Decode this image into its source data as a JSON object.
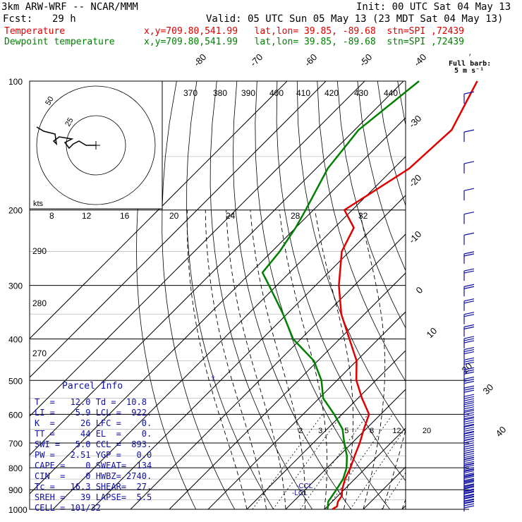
{
  "header": {
    "model": "3km ARW-WRF -- NCAR/MMM",
    "init": "Init: 00 UTC Sat 04 May 13",
    "fcst_label": "Fcst:",
    "fcst_value": "29 h",
    "valid": "Valid: 05 UTC Sun 05 May 13 (23 MDT Sat 04 May 13)",
    "temp_label": "Temperature",
    "temp_info": "x,y=709.80,541.99   lat,lon= 39.85, -89.68  stn=SPI ,72439",
    "dew_label": "Dewpoint temperature",
    "dew_info": "x,y=709.80,541.99   lat,lon= 39.85, -89.68  stn=SPI ,72439"
  },
  "wind_legend": {
    "line1": "Full barb:",
    "line2": "5 m s⁻¹"
  },
  "hodograph": {
    "units": "kts",
    "ring_labels": [
      "25",
      "50"
    ],
    "x_labels": [
      "8",
      "12",
      "16",
      "20",
      "24",
      "28",
      "32"
    ]
  },
  "parcel_info": {
    "title": "Parcel Info",
    "rows": [
      "T  =   12.0 Td =  10.8",
      "LI =    5.9 LCL =  922.",
      "K  =     26 LFC =    0.",
      "TT =     44 EL  =    0.",
      "SWI =   5.0 CCL =  893.",
      "PW =   2.51 YGP =   0.0",
      "CAPE =    0 SWEAT=  134",
      "CIN  =    0 HWBZ= 2740.",
      "Tc =   16.3 SHEAR=  27.",
      "SREH =   39 LAPSE=  5.5",
      "CELL = 101/32"
    ]
  },
  "markers": {
    "lcl": "-LCL",
    "ccl": "-CCL"
  },
  "colors": {
    "temperature": "#e00000",
    "dewpoint": "#008000",
    "isotherm": "#000000",
    "parcel_text": "#1010a0",
    "barb": "#1010a0"
  },
  "chart_data": {
    "type": "line",
    "title": "",
    "pressure_levels_hpa": [
      100,
      200,
      300,
      400,
      500,
      600,
      700,
      800,
      900,
      1000
    ],
    "isotherm_labels_c": [
      "-80",
      "-70",
      "-60",
      "-50",
      "-40",
      "-30",
      "-20",
      "-10",
      "0",
      "10",
      "20",
      "30",
      "40"
    ],
    "theta_labels_k": [
      "370",
      "380",
      "390",
      "400",
      "410",
      "420",
      "430",
      "440"
    ],
    "theta_side_labels_k": [
      "290",
      "280",
      "270"
    ],
    "mixing_ratio_labels": [
      "2",
      "3",
      "5",
      "8",
      "12",
      "20"
    ],
    "series": [
      {
        "name": "Temperature",
        "color": "#e00000",
        "p": [
          100,
          130,
          160,
          200,
          220,
          250,
          300,
          350,
          400,
          450,
          500,
          550,
          600,
          650,
          700,
          750,
          800,
          850,
          900,
          930,
          960,
          985,
          1000
        ],
        "t": [
          -61,
          -55,
          -56,
          -62,
          -55,
          -52,
          -44,
          -36,
          -27.5,
          -20,
          -15,
          -9,
          -3,
          -0.5,
          2,
          4,
          6,
          7.5,
          9.5,
          11,
          11.5,
          12.5,
          12
        ]
      },
      {
        "name": "Dewpoint temperature",
        "color": "#008000",
        "p": [
          100,
          130,
          160,
          200,
          220,
          250,
          280,
          300,
          350,
          400,
          450,
          500,
          550,
          600,
          650,
          700,
          750,
          800,
          850,
          900,
          930,
          960,
          1000
        ],
        "t": [
          -76,
          -79,
          -77,
          -72,
          -70,
          -68,
          -67,
          -62,
          -51,
          -42,
          -31,
          -24,
          -19,
          -12,
          -6,
          -2,
          2,
          5,
          7,
          8,
          8.5,
          9,
          10.8
        ]
      }
    ]
  }
}
